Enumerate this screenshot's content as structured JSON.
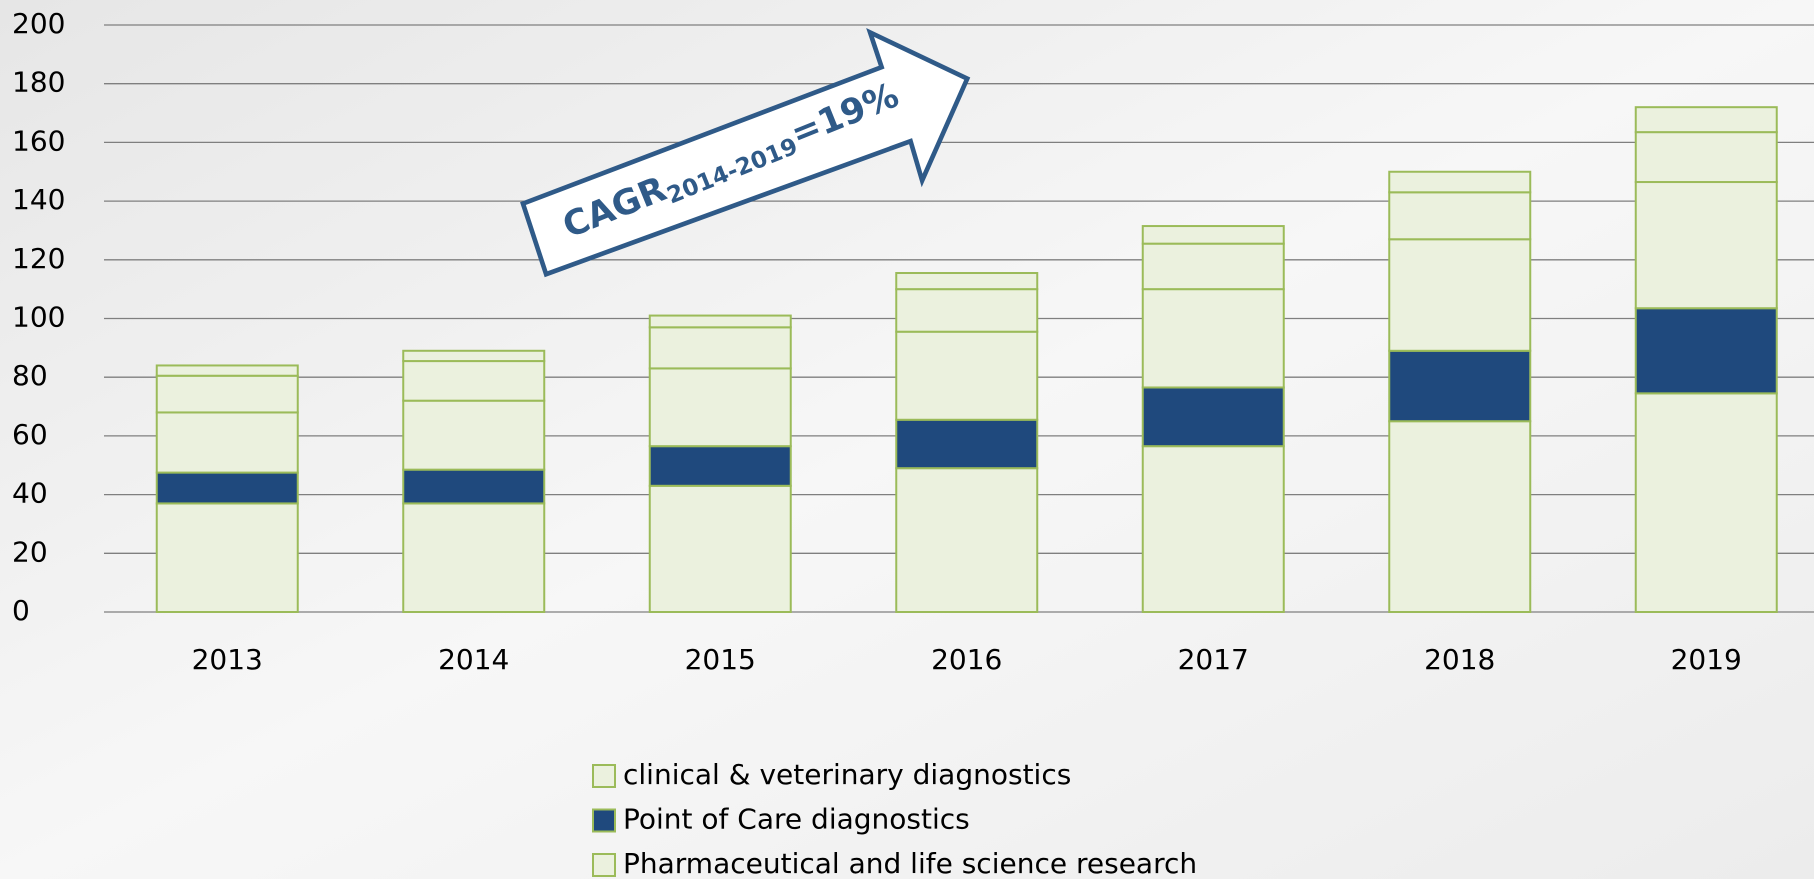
{
  "chart_data": {
    "type": "stacked-bar",
    "categories": [
      "2013",
      "2014",
      "2015",
      "2016",
      "2017",
      "2018",
      "2019"
    ],
    "series": [
      {
        "name": "Pharmaceutical and life science research",
        "color": "#ebf1de",
        "values": [
          37,
          37,
          43,
          49,
          56.5,
          65,
          74.5
        ]
      },
      {
        "name": "Point of Care diagnostics",
        "color": "#1f497d",
        "values": [
          10.5,
          11.5,
          13.5,
          16.5,
          20,
          24,
          29
        ]
      },
      {
        "name": "clinical & veterinary diagnostics",
        "color": "#ebf1de",
        "values": [
          20.5,
          23.5,
          26.5,
          30,
          33.5,
          38,
          43
        ]
      },
      {
        "color": "#ebf1de",
        "values": [
          12.5,
          13.5,
          14,
          14.5,
          15.5,
          16,
          17
        ]
      },
      {
        "color": "#ebf1de",
        "values": [
          3.5,
          3.5,
          4,
          5.5,
          6,
          7,
          8.5
        ]
      }
    ],
    "border_color": "#9bbb59",
    "ylim": [
      0,
      200
    ],
    "yticks": [
      0,
      20,
      40,
      60,
      80,
      100,
      120,
      140,
      160,
      180,
      200
    ],
    "grid": true,
    "annotation": {
      "main": "CAGR",
      "subscript": "2014-2019",
      "suffix": "=19%"
    }
  }
}
